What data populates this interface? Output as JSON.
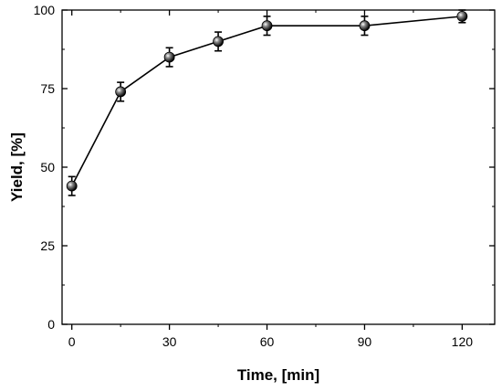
{
  "chart_data": {
    "type": "line",
    "xlabel": "Time, [min]",
    "ylabel": "Yield, [%]",
    "xlim": [
      -3,
      130
    ],
    "ylim": [
      0,
      100
    ],
    "xticks": [
      0,
      30,
      60,
      90,
      120
    ],
    "yticks": [
      0,
      25,
      50,
      75,
      100
    ],
    "grid": false,
    "series": [
      {
        "x": [
          0,
          15,
          30,
          45,
          60,
          90,
          120
        ],
        "y": [
          44,
          74,
          85,
          90,
          95,
          95,
          98
        ],
        "error": [
          3,
          3,
          3,
          3,
          3,
          3,
          2
        ]
      }
    ],
    "colors": {
      "line": "#000000",
      "marker": "#000000"
    }
  }
}
